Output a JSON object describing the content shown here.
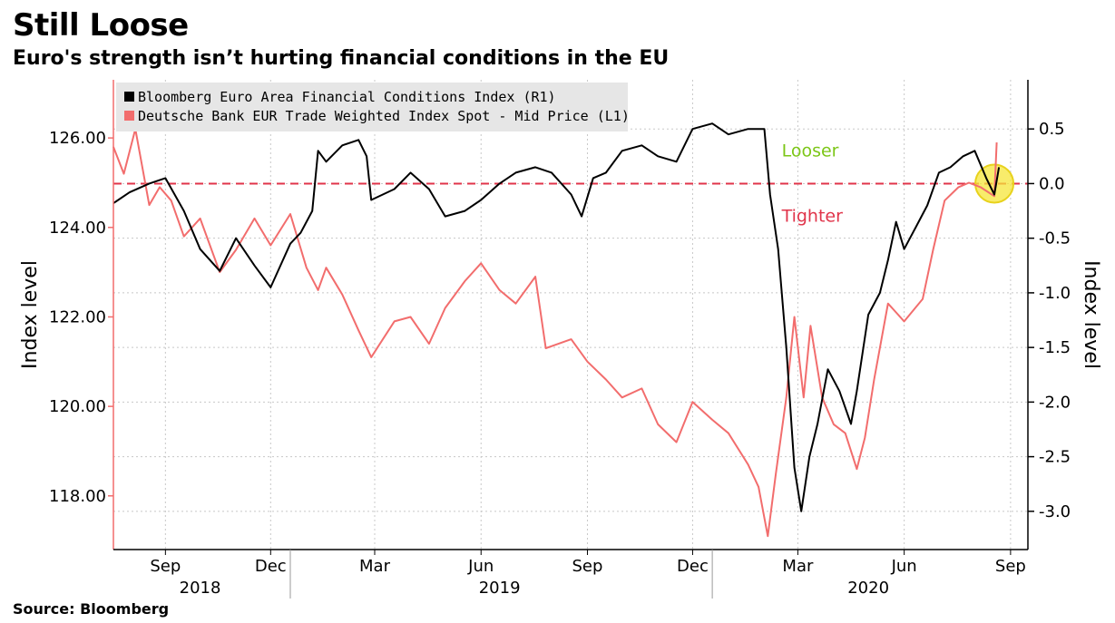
{
  "title": "Still Loose",
  "subtitle": "Euro's strength isn’t hurting financial conditions in the EU",
  "source": "Source: Bloomberg",
  "chart_data": {
    "type": "line",
    "left_axis": {
      "title": "Index level",
      "range": [
        116.8,
        127.3
      ],
      "ticks": [
        118,
        120,
        122,
        124,
        126
      ],
      "tick_labels": [
        "118.00",
        "120.00",
        "122.00",
        "124.00",
        "126.00"
      ]
    },
    "right_axis": {
      "title": "Index level",
      "range": [
        -3.35,
        0.95
      ],
      "ticks": [
        -3.0,
        -2.5,
        -2.0,
        -1.5,
        -1.0,
        -0.5,
        0.0,
        0.5
      ],
      "tick_labels": [
        "-3.0",
        "-2.5",
        "-2.0",
        "-1.5",
        "-1.0",
        "-0.5",
        "0.0",
        "0.5"
      ]
    },
    "x_axis": {
      "range": [
        "2018-08-01",
        "2020-09-30"
      ],
      "month_ticks": [
        {
          "date": "2018-09-15",
          "label": "Sep"
        },
        {
          "date": "2018-12-15",
          "label": "Dec"
        },
        {
          "date": "2019-03-15",
          "label": "Mar"
        },
        {
          "date": "2019-06-15",
          "label": "Jun"
        },
        {
          "date": "2019-09-15",
          "label": "Sep"
        },
        {
          "date": "2019-12-15",
          "label": "Dec"
        },
        {
          "date": "2020-03-15",
          "label": "Mar"
        },
        {
          "date": "2020-06-15",
          "label": "Jun"
        },
        {
          "date": "2020-09-15",
          "label": "Sep"
        }
      ],
      "years": [
        {
          "label": "2018",
          "center": "2018-10-15"
        },
        {
          "label": "2019",
          "center": "2019-07-01"
        },
        {
          "label": "2020",
          "center": "2020-05-15"
        }
      ],
      "year_dividers": [
        "2019-01-01",
        "2020-01-01"
      ]
    },
    "legend": {
      "placement": "top-left",
      "entries": [
        {
          "label": "Bloomberg Euro Area Financial Conditions Index  (R1)",
          "color": "#000000"
        },
        {
          "label": "Deutsche Bank EUR Trade Weighted Index Spot - Mid Price (L1)",
          "color": "#f26d6d"
        }
      ]
    },
    "reference_line": {
      "axis": "right",
      "value": 0.0,
      "color": "#e0344a",
      "style": "dashed"
    },
    "annotations": [
      {
        "text": "Looser",
        "color": "#7cc617",
        "date": "2020-03-01",
        "value": 0.25
      },
      {
        "text": "Tighter",
        "color": "#e0344a",
        "date": "2020-03-01",
        "value": -0.35
      }
    ],
    "highlight": {
      "date": "2020-09-01",
      "value": 0.0,
      "color": "#f5e63a"
    },
    "series": [
      {
        "name": "Bloomberg Euro Area Financial Conditions Index  (R1)",
        "axis": "right",
        "color": "#000000",
        "points": [
          [
            "2018-08-01",
            -0.18
          ],
          [
            "2018-08-15",
            -0.08
          ],
          [
            "2018-09-01",
            0.0
          ],
          [
            "2018-09-15",
            0.05
          ],
          [
            "2018-10-01",
            -0.25
          ],
          [
            "2018-10-15",
            -0.6
          ],
          [
            "2018-11-01",
            -0.8
          ],
          [
            "2018-11-15",
            -0.5
          ],
          [
            "2018-12-01",
            -0.75
          ],
          [
            "2018-12-15",
            -0.95
          ],
          [
            "2019-01-01",
            -0.55
          ],
          [
            "2019-01-10",
            -0.45
          ],
          [
            "2019-01-20",
            -0.25
          ],
          [
            "2019-01-25",
            0.3
          ],
          [
            "2019-02-01",
            0.2
          ],
          [
            "2019-02-15",
            0.35
          ],
          [
            "2019-03-01",
            0.4
          ],
          [
            "2019-03-08",
            0.25
          ],
          [
            "2019-03-12",
            -0.15
          ],
          [
            "2019-04-01",
            -0.05
          ],
          [
            "2019-04-15",
            0.1
          ],
          [
            "2019-05-01",
            -0.05
          ],
          [
            "2019-05-15",
            -0.3
          ],
          [
            "2019-06-01",
            -0.25
          ],
          [
            "2019-06-15",
            -0.15
          ],
          [
            "2019-07-01",
            0.0
          ],
          [
            "2019-07-15",
            0.1
          ],
          [
            "2019-08-01",
            0.15
          ],
          [
            "2019-08-15",
            0.1
          ],
          [
            "2019-09-01",
            -0.1
          ],
          [
            "2019-09-10",
            -0.3
          ],
          [
            "2019-09-20",
            0.05
          ],
          [
            "2019-10-01",
            0.1
          ],
          [
            "2019-10-15",
            0.3
          ],
          [
            "2019-11-01",
            0.35
          ],
          [
            "2019-11-15",
            0.25
          ],
          [
            "2019-12-01",
            0.2
          ],
          [
            "2019-12-15",
            0.5
          ],
          [
            "2020-01-01",
            0.55
          ],
          [
            "2020-01-15",
            0.45
          ],
          [
            "2020-02-01",
            0.5
          ],
          [
            "2020-02-15",
            0.5
          ],
          [
            "2020-02-20",
            -0.1
          ],
          [
            "2020-02-27",
            -0.6
          ],
          [
            "2020-03-05",
            -1.5
          ],
          [
            "2020-03-12",
            -2.6
          ],
          [
            "2020-03-18",
            -3.0
          ],
          [
            "2020-03-25",
            -2.5
          ],
          [
            "2020-04-01",
            -2.2
          ],
          [
            "2020-04-10",
            -1.7
          ],
          [
            "2020-04-20",
            -1.9
          ],
          [
            "2020-04-30",
            -2.2
          ],
          [
            "2020-05-05",
            -1.9
          ],
          [
            "2020-05-15",
            -1.2
          ],
          [
            "2020-05-25",
            -1.0
          ],
          [
            "2020-06-01",
            -0.7
          ],
          [
            "2020-06-08",
            -0.35
          ],
          [
            "2020-06-15",
            -0.6
          ],
          [
            "2020-06-25",
            -0.4
          ],
          [
            "2020-07-05",
            -0.2
          ],
          [
            "2020-07-15",
            0.1
          ],
          [
            "2020-07-25",
            0.15
          ],
          [
            "2020-08-05",
            0.25
          ],
          [
            "2020-08-15",
            0.3
          ],
          [
            "2020-08-25",
            0.05
          ],
          [
            "2020-09-01",
            -0.1
          ],
          [
            "2020-09-05",
            0.15
          ]
        ]
      },
      {
        "name": "Deutsche Bank EUR Trade Weighted Index Spot - Mid Price (L1)",
        "axis": "left",
        "color": "#f26d6d",
        "points": [
          [
            "2018-08-01",
            125.8
          ],
          [
            "2018-08-10",
            125.2
          ],
          [
            "2018-08-20",
            126.2
          ],
          [
            "2018-09-01",
            124.5
          ],
          [
            "2018-09-10",
            124.9
          ],
          [
            "2018-09-20",
            124.6
          ],
          [
            "2018-10-01",
            123.8
          ],
          [
            "2018-10-15",
            124.2
          ],
          [
            "2018-11-01",
            123.0
          ],
          [
            "2018-11-15",
            123.5
          ],
          [
            "2018-12-01",
            124.2
          ],
          [
            "2018-12-15",
            123.6
          ],
          [
            "2019-01-01",
            124.3
          ],
          [
            "2019-01-15",
            123.1
          ],
          [
            "2019-01-25",
            122.6
          ],
          [
            "2019-02-01",
            123.1
          ],
          [
            "2019-02-15",
            122.5
          ],
          [
            "2019-03-01",
            121.7
          ],
          [
            "2019-03-12",
            121.1
          ],
          [
            "2019-04-01",
            121.9
          ],
          [
            "2019-04-15",
            122.0
          ],
          [
            "2019-05-01",
            121.4
          ],
          [
            "2019-05-15",
            122.2
          ],
          [
            "2019-06-01",
            122.8
          ],
          [
            "2019-06-15",
            123.2
          ],
          [
            "2019-07-01",
            122.6
          ],
          [
            "2019-07-15",
            122.3
          ],
          [
            "2019-08-01",
            122.9
          ],
          [
            "2019-08-10",
            121.3
          ],
          [
            "2019-09-01",
            121.5
          ],
          [
            "2019-09-15",
            121.0
          ],
          [
            "2019-10-01",
            120.6
          ],
          [
            "2019-10-15",
            120.2
          ],
          [
            "2019-11-01",
            120.4
          ],
          [
            "2019-11-15",
            119.6
          ],
          [
            "2019-12-01",
            119.2
          ],
          [
            "2019-12-15",
            120.1
          ],
          [
            "2020-01-01",
            119.7
          ],
          [
            "2020-01-15",
            119.4
          ],
          [
            "2020-02-01",
            118.7
          ],
          [
            "2020-02-10",
            118.2
          ],
          [
            "2020-02-18",
            117.1
          ],
          [
            "2020-02-25",
            118.5
          ],
          [
            "2020-03-05",
            120.2
          ],
          [
            "2020-03-12",
            122.0
          ],
          [
            "2020-03-20",
            120.2
          ],
          [
            "2020-03-26",
            121.8
          ],
          [
            "2020-04-05",
            120.2
          ],
          [
            "2020-04-15",
            119.6
          ],
          [
            "2020-04-25",
            119.4
          ],
          [
            "2020-05-05",
            118.6
          ],
          [
            "2020-05-12",
            119.3
          ],
          [
            "2020-05-20",
            120.6
          ],
          [
            "2020-06-01",
            122.3
          ],
          [
            "2020-06-08",
            122.1
          ],
          [
            "2020-06-15",
            121.9
          ],
          [
            "2020-07-01",
            122.4
          ],
          [
            "2020-07-10",
            123.5
          ],
          [
            "2020-07-20",
            124.6
          ],
          [
            "2020-08-01",
            124.9
          ],
          [
            "2020-08-10",
            125.0
          ],
          [
            "2020-08-20",
            124.9
          ],
          [
            "2020-09-01",
            124.7
          ],
          [
            "2020-09-03",
            125.9
          ]
        ]
      }
    ]
  }
}
